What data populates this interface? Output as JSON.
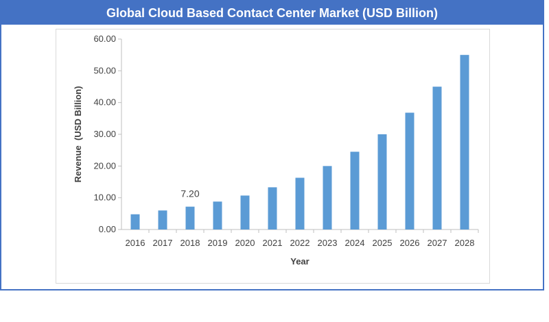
{
  "header": {
    "title": "Global Cloud Based Contact Center Market (USD Billion)"
  },
  "colors": {
    "header_bg": "#4472c4",
    "bar": "#5b9bd5",
    "axis": "#bfbfbf",
    "text": "#404040"
  },
  "chart_data": {
    "type": "bar",
    "title": "Global Cloud Based Contact Center Market (USD Billion)",
    "xlabel": "Year",
    "ylabel": "Revenue  (USD Billion)",
    "categories": [
      "2016",
      "2017",
      "2018",
      "2019",
      "2020",
      "2021",
      "2022",
      "2023",
      "2024",
      "2025",
      "2026",
      "2027",
      "2028"
    ],
    "values": [
      4.8,
      6.0,
      7.2,
      8.8,
      10.7,
      13.3,
      16.3,
      20.0,
      24.5,
      30.0,
      36.8,
      45.0,
      55.0
    ],
    "ylim": [
      0,
      60
    ],
    "yticks": [
      "0.00",
      "10.00",
      "20.00",
      "30.00",
      "40.00",
      "50.00",
      "60.00"
    ],
    "data_labels": [
      {
        "category": "2018",
        "text": "7.20"
      }
    ],
    "grid": false,
    "legend": "none"
  }
}
